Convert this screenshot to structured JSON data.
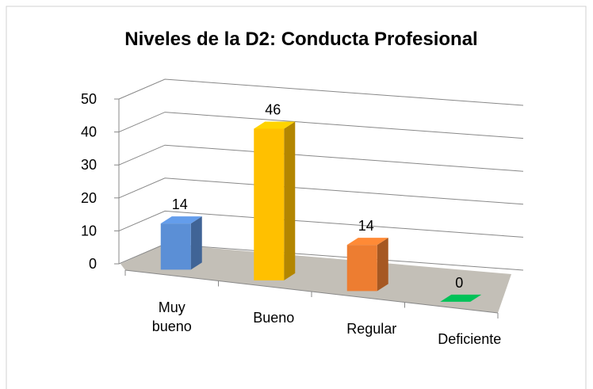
{
  "chart_data": {
    "type": "bar3d",
    "title": "Niveles de la D2: Conducta Profesional",
    "categories": [
      "Muy bueno",
      "Bueno",
      "Regular",
      "Deficiente"
    ],
    "values": [
      14,
      46,
      14,
      0
    ],
    "colors": [
      "#5b8fd6",
      "#ffc000",
      "#ed7d31",
      "#00b050"
    ],
    "ylim": [
      0,
      50
    ],
    "yticks": [
      0,
      10,
      20,
      30,
      40,
      50
    ],
    "grid": true
  }
}
